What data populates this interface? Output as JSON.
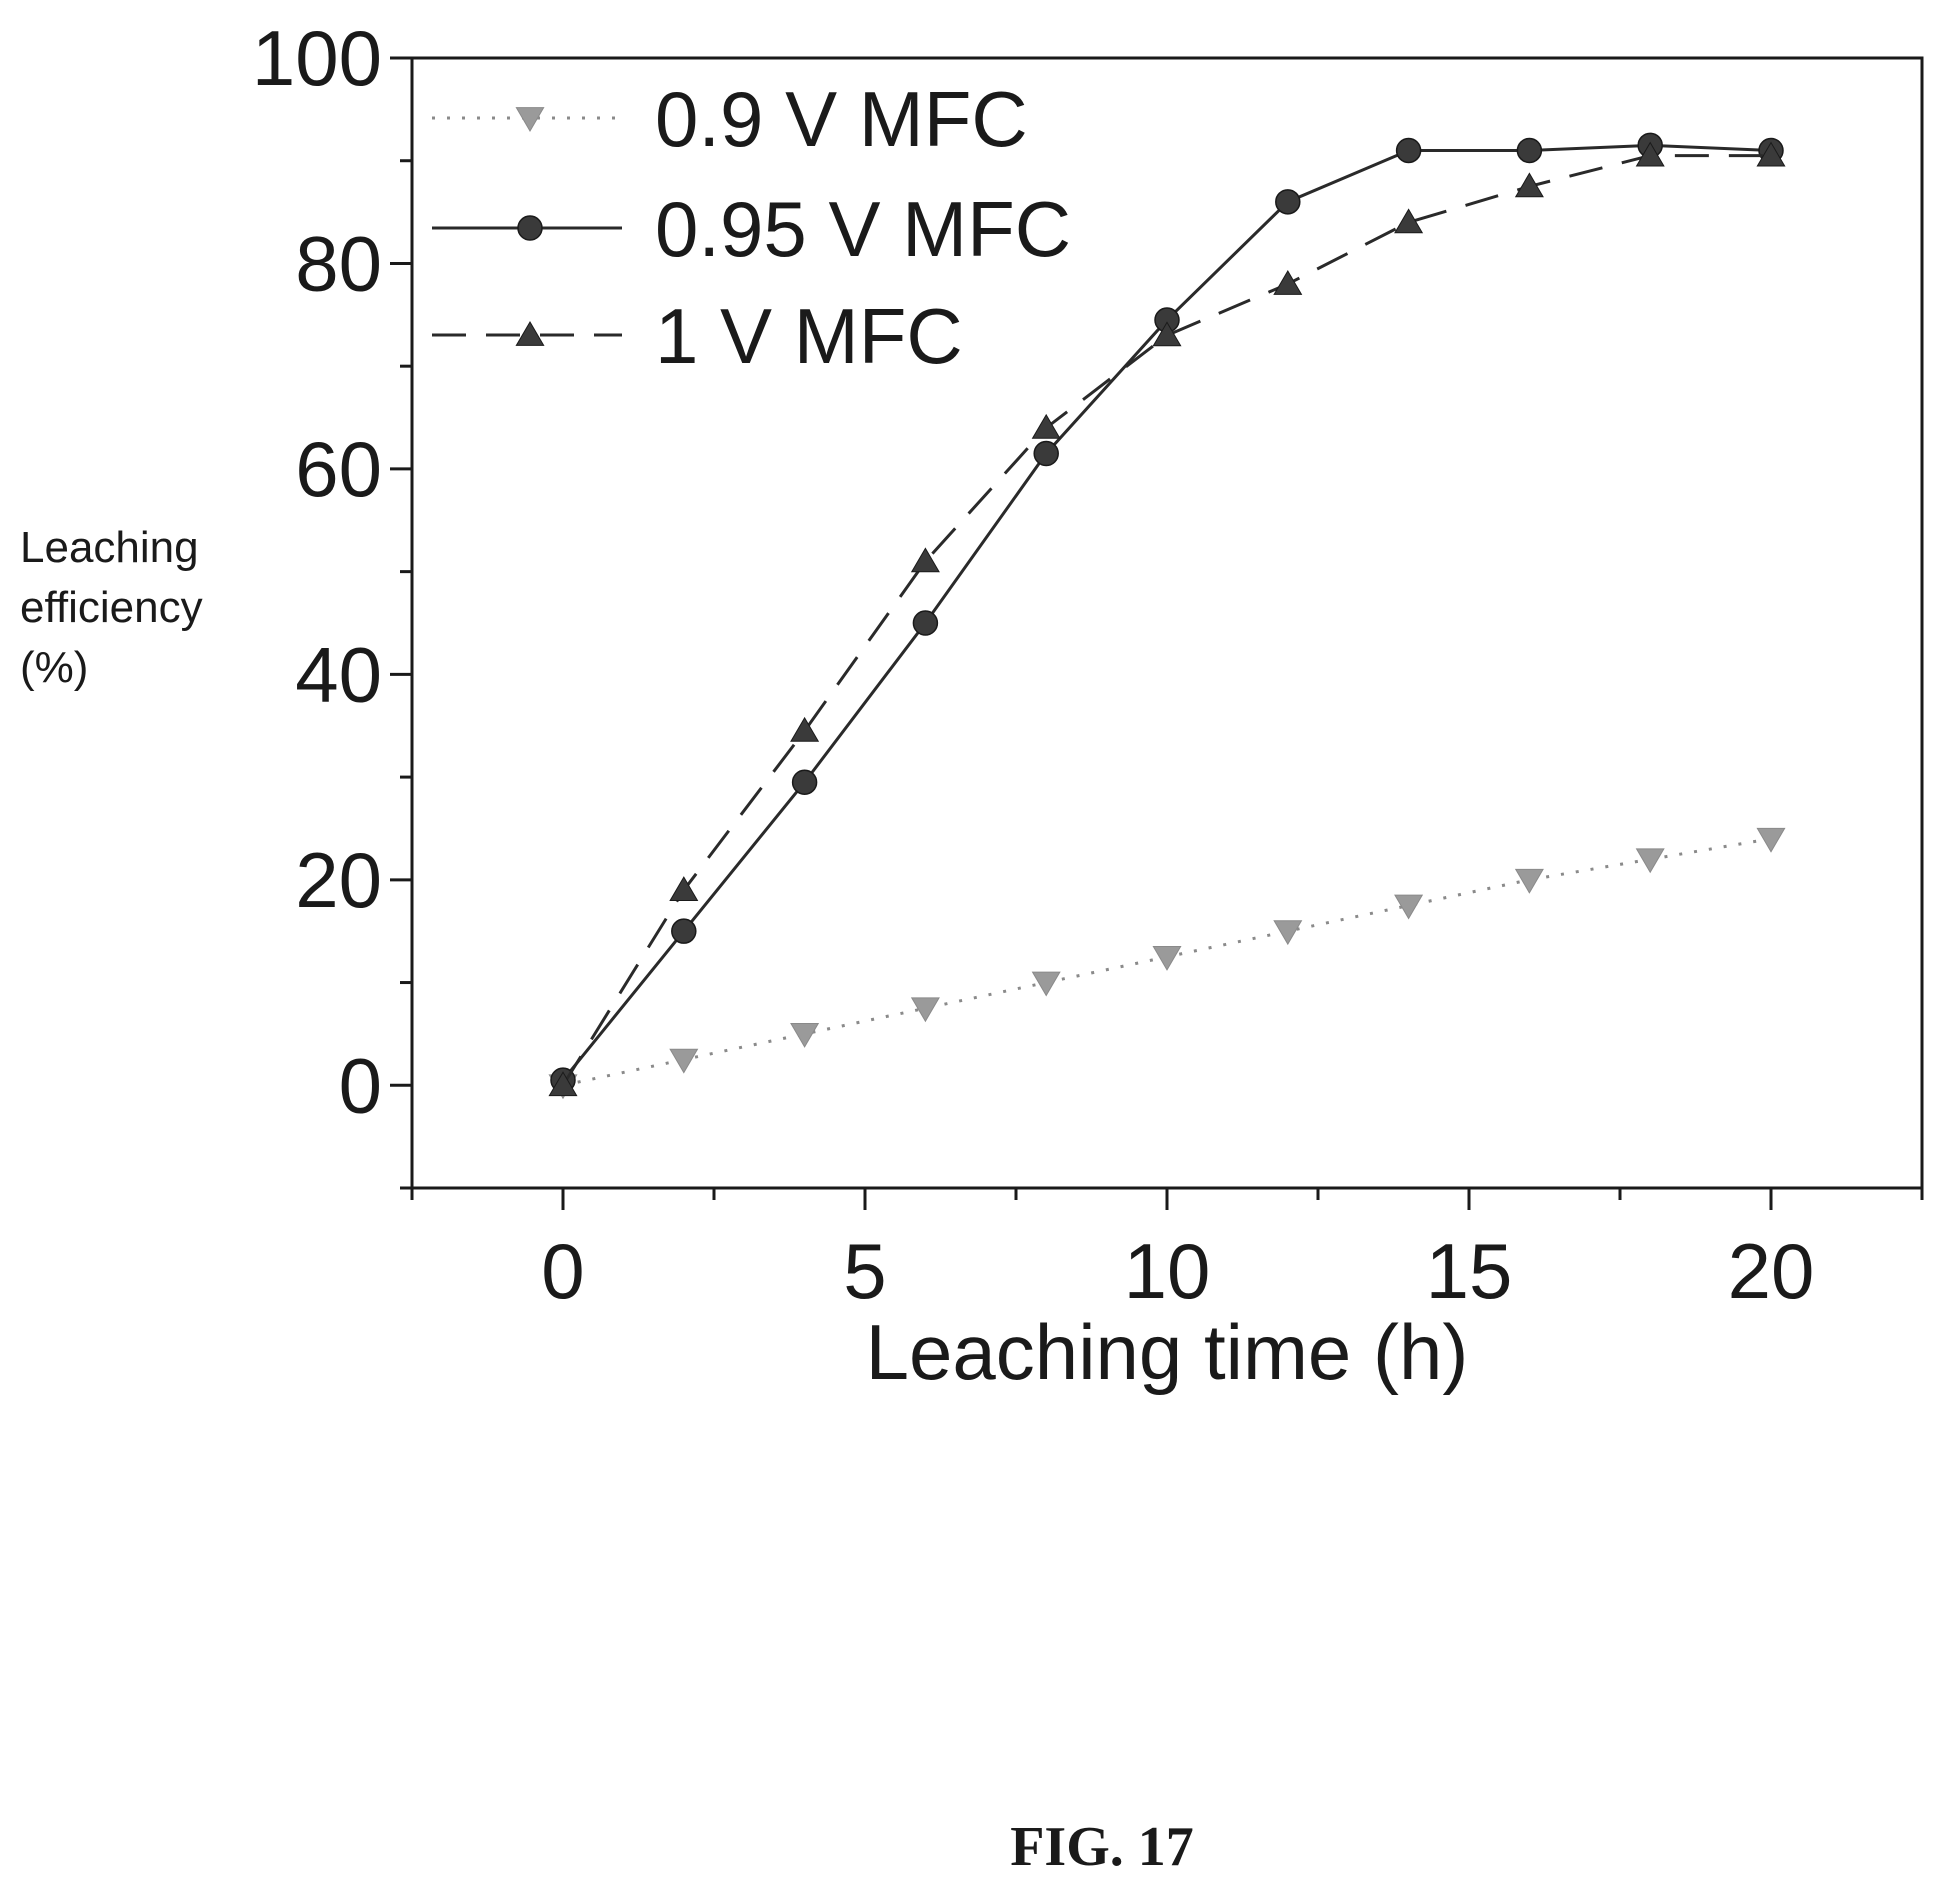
{
  "chart_data": {
    "type": "line",
    "title": "",
    "xlabel": "Leaching time (h)",
    "ylabel_lines": [
      "Leaching",
      "efficiency",
      "(%)"
    ],
    "xlim": [
      -2.5,
      22.5
    ],
    "ylim": [
      -10,
      100
    ],
    "xticks": [
      0,
      5,
      10,
      15,
      20
    ],
    "xtick_labels": [
      "0",
      "5",
      "10",
      "15",
      "20"
    ],
    "yticks": [
      0,
      20,
      40,
      60,
      80,
      100
    ],
    "ytick_labels": [
      "0",
      "20",
      "40",
      "60",
      "80",
      "100"
    ],
    "x": [
      0,
      2,
      4,
      6,
      8,
      10,
      12,
      14,
      16,
      18,
      20
    ],
    "grid": false,
    "legend_position": "top-left",
    "series": [
      {
        "name": "0.9 V MFC",
        "values": [
          0,
          2.5,
          5,
          7.5,
          10,
          12.5,
          15,
          17.5,
          20,
          22,
          24
        ],
        "line_style": "dotted",
        "marker": "triangle-down",
        "color": "#9a9a9a"
      },
      {
        "name": "0.95 V MFC",
        "values": [
          0.5,
          15,
          29.5,
          45,
          61.5,
          74.5,
          86,
          91,
          91,
          91.5,
          91
        ],
        "line_style": "solid",
        "marker": "circle",
        "color": "#3a3a3a"
      },
      {
        "name": "1 V MFC",
        "values": [
          0,
          19,
          34.5,
          51,
          64,
          73,
          78,
          84,
          87.5,
          90.5,
          90.5
        ],
        "line_style": "dashed",
        "marker": "triangle-up",
        "color": "#3a3a3a"
      }
    ]
  },
  "caption": "FIG. 17"
}
